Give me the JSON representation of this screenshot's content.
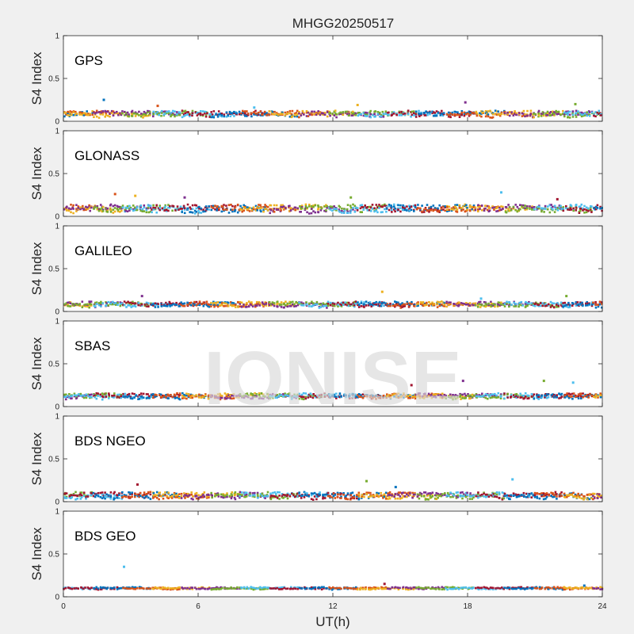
{
  "chart_data": {
    "type": "scatter",
    "title": "MHGG20250517",
    "xlabel": "UT(h)",
    "ylabel": "S4 Index",
    "xlim": [
      0,
      24
    ],
    "ylim": [
      0,
      1
    ],
    "x_ticks": [
      "0",
      "6",
      "12",
      "18",
      "24"
    ],
    "y_ticks": [
      "0",
      "0.5",
      "1"
    ],
    "watermark": "IONISE",
    "grid": false,
    "colors": [
      "#0072BD",
      "#D95319",
      "#EDB120",
      "#7E2F8E",
      "#77AC30",
      "#4DBEEE",
      "#A2142F"
    ],
    "panels": [
      {
        "label": "GPS",
        "series_count": 7,
        "typical_range": [
          0.04,
          0.14
        ],
        "points": [
          {
            "x": 1.8,
            "y": 0.25
          },
          {
            "x": 4.2,
            "y": 0.18
          },
          {
            "x": 13.1,
            "y": 0.19
          },
          {
            "x": 17.9,
            "y": 0.22
          },
          {
            "x": 22.8,
            "y": 0.2
          },
          {
            "x": 8.5,
            "y": 0.16
          }
        ]
      },
      {
        "label": "GLONASS",
        "series_count": 7,
        "typical_range": [
          0.03,
          0.16
        ],
        "points": [
          {
            "x": 2.3,
            "y": 0.26
          },
          {
            "x": 3.2,
            "y": 0.24
          },
          {
            "x": 5.4,
            "y": 0.22
          },
          {
            "x": 12.8,
            "y": 0.22
          },
          {
            "x": 19.5,
            "y": 0.28
          },
          {
            "x": 22.0,
            "y": 0.2
          }
        ]
      },
      {
        "label": "GALILEO",
        "series_count": 7,
        "typical_range": [
          0.04,
          0.13
        ],
        "points": [
          {
            "x": 14.2,
            "y": 0.23
          },
          {
            "x": 3.5,
            "y": 0.18
          },
          {
            "x": 22.4,
            "y": 0.18
          },
          {
            "x": 18.6,
            "y": 0.15
          }
        ]
      },
      {
        "label": "SBAS",
        "series_count": 3,
        "typical_range": [
          0.08,
          0.17
        ],
        "points": [
          {
            "x": 17.8,
            "y": 0.3
          },
          {
            "x": 21.4,
            "y": 0.3
          },
          {
            "x": 22.7,
            "y": 0.28
          },
          {
            "x": 15.5,
            "y": 0.25
          }
        ]
      },
      {
        "label": "BDS NGEO",
        "series_count": 7,
        "typical_range": [
          0.02,
          0.13
        ],
        "points": [
          {
            "x": 13.5,
            "y": 0.24
          },
          {
            "x": 20.0,
            "y": 0.26
          },
          {
            "x": 3.3,
            "y": 0.2
          },
          {
            "x": 14.8,
            "y": 0.17
          }
        ]
      },
      {
        "label": "BDS GEO",
        "series_count": 2,
        "typical_range": [
          0.08,
          0.12
        ],
        "points": [
          {
            "x": 2.7,
            "y": 0.35
          },
          {
            "x": 14.3,
            "y": 0.15
          },
          {
            "x": 23.2,
            "y": 0.13
          }
        ]
      }
    ]
  }
}
